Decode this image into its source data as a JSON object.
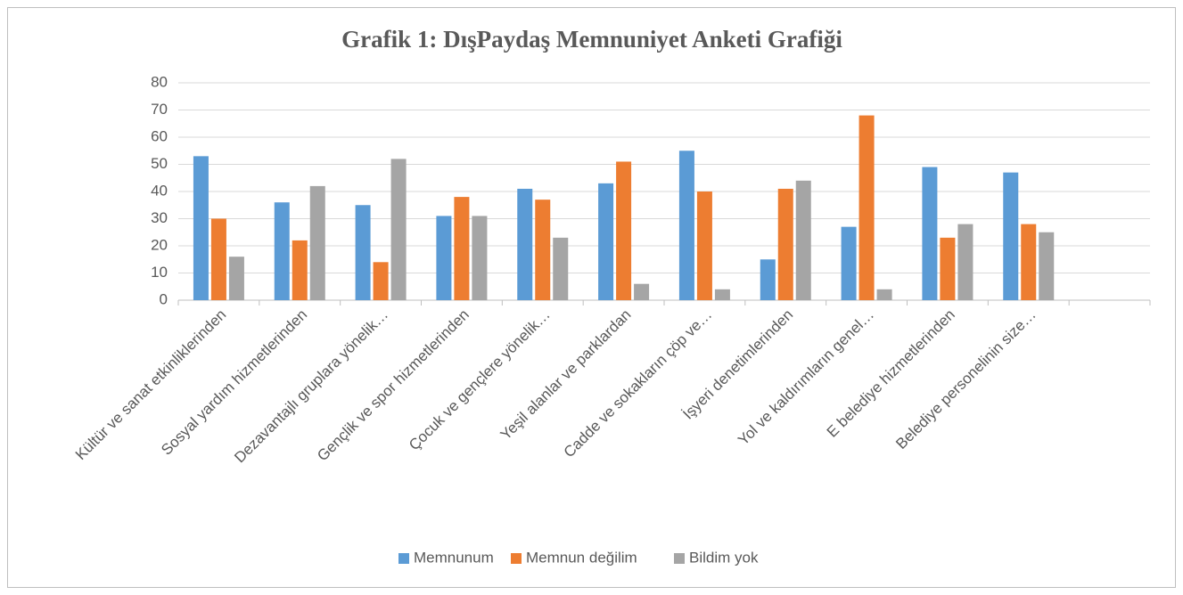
{
  "chart_data": {
    "type": "bar",
    "title": "Grafik 1: DışPaydaş Memnuniyet Anketi Grafiği",
    "categories": [
      "Kültür ve sanat etkinliklerinden",
      "Sosyal yardım hizmetlerinden",
      "Dezavantajlı gruplara yönelik…",
      "Gençlik ve spor hizmetlerinden",
      "Çocuk ve gençlere yönelik…",
      "Yeşil alanlar ve parklardan",
      "Cadde ve sokakların çöp ve…",
      "İşyeri denetimlerinden",
      "Yol ve kaldırımların genel…",
      "E belediye hizmetlerinden",
      "Belediye personelinin size…",
      null
    ],
    "series": [
      {
        "name": "Memnunum",
        "color": "#5b9bd5",
        "values": [
          53,
          36,
          35,
          31,
          41,
          43,
          55,
          15,
          27,
          49,
          47,
          null
        ]
      },
      {
        "name": "Memnun değilim",
        "color": "#ed7d31",
        "values": [
          30,
          22,
          14,
          38,
          37,
          51,
          40,
          41,
          68,
          23,
          28,
          null
        ]
      },
      {
        "name": "Bildim yok",
        "color": "#a5a5a5",
        "values": [
          16,
          42,
          52,
          31,
          23,
          6,
          4,
          44,
          4,
          28,
          25,
          null
        ]
      }
    ],
    "ylim": [
      0,
      80
    ],
    "yticks": [
      0,
      10,
      20,
      30,
      40,
      50,
      60,
      70,
      80
    ],
    "grid": true,
    "legend": "bottom"
  }
}
